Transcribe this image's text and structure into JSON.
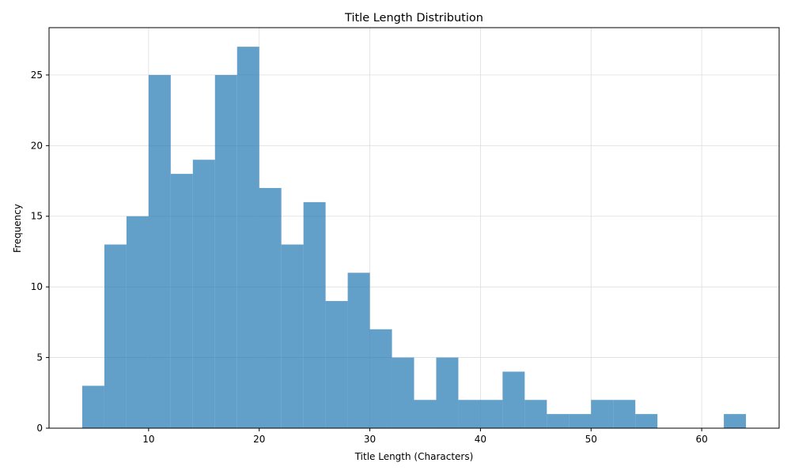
{
  "chart_data": {
    "type": "bar",
    "title": "Title Length Distribution",
    "xlabel": "Title Length (Characters)",
    "ylabel": "Frequency",
    "bin_edges": [
      4,
      6,
      8,
      10,
      12,
      14,
      16,
      18,
      20,
      22,
      24,
      26,
      28,
      30,
      32,
      34,
      36,
      38,
      40,
      42,
      44,
      46,
      48,
      50,
      52,
      54,
      56,
      58,
      60,
      62,
      64
    ],
    "values": [
      3,
      13,
      15,
      25,
      18,
      19,
      25,
      27,
      17,
      13,
      16,
      9,
      11,
      7,
      5,
      2,
      5,
      2,
      2,
      4,
      2,
      1,
      1,
      2,
      2,
      1,
      0,
      0,
      0,
      1
    ],
    "xlim": [
      1,
      67
    ],
    "ylim": [
      0,
      28.35
    ],
    "x_ticks": [
      10,
      20,
      30,
      40,
      50,
      60
    ],
    "y_ticks": [
      0,
      5,
      10,
      15,
      20,
      25
    ],
    "grid": true,
    "color": "#1f77b4"
  }
}
